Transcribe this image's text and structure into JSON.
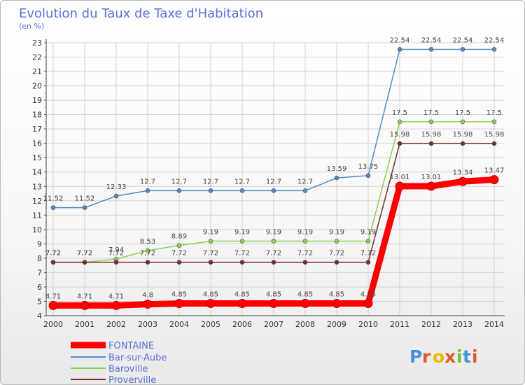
{
  "chart_data": {
    "type": "line",
    "title": "Evolution du Taux de Taxe d'Habitation",
    "unit_label": "(en %)",
    "x": [
      "2000",
      "2001",
      "2002",
      "2003",
      "2004",
      "2005",
      "2006",
      "2007",
      "2008",
      "2009",
      "2010",
      "2011",
      "2012",
      "2013",
      "2014"
    ],
    "ylim": [
      4,
      23
    ],
    "yticks": [
      4,
      5,
      6,
      7,
      8,
      9,
      10,
      11,
      12,
      13,
      14,
      15,
      16,
      17,
      18,
      19,
      20,
      21,
      22,
      23
    ],
    "grid": true,
    "legend_position": "bottom-left",
    "series": [
      {
        "name": "FONTAINE",
        "color": "#ff0000",
        "values": [
          4.71,
          4.71,
          4.71,
          4.8,
          4.85,
          4.85,
          4.85,
          4.85,
          4.85,
          4.85,
          4.85,
          13.01,
          13.01,
          13.34,
          13.47
        ],
        "labels": [
          "4.71",
          "4.71",
          "4.71",
          "4.8",
          "4.85",
          "4.85",
          "4.85",
          "4.85",
          "4.85",
          "4.85",
          "4.85",
          "13.01",
          "13.01",
          "13.34",
          "13.47"
        ]
      },
      {
        "name": "Bar-sur-Aube",
        "color": "#4d8cc9",
        "values": [
          11.52,
          11.52,
          12.33,
          12.7,
          12.7,
          12.7,
          12.7,
          12.7,
          12.7,
          13.59,
          13.75,
          22.54,
          22.54,
          22.54,
          22.54
        ],
        "labels": [
          "11.52",
          "11.52",
          "12.33",
          "12.7",
          "12.7",
          "12.7",
          "12.7",
          "12.7",
          "12.7",
          "13.59",
          "13.75",
          "22.54",
          "22.54",
          "22.54",
          "22.54"
        ]
      },
      {
        "name": "Baroville",
        "color": "#8fd14f",
        "values": [
          7.72,
          7.72,
          7.94,
          8.53,
          8.89,
          9.19,
          9.19,
          9.19,
          9.19,
          9.19,
          9.19,
          17.5,
          17.5,
          17.5,
          17.5
        ],
        "labels": [
          "7.72",
          "7.72",
          "7.94",
          "8.53",
          "8.89",
          "9.19",
          "9.19",
          "9.19",
          "9.19",
          "9.19",
          "9.19",
          "17.5",
          "17.5",
          "17.5",
          "17.5"
        ]
      },
      {
        "name": "Proverville",
        "color": "#7b2b2b",
        "values": [
          7.72,
          7.72,
          7.72,
          7.72,
          7.72,
          7.72,
          7.72,
          7.72,
          7.72,
          7.72,
          7.72,
          15.98,
          15.98,
          15.98,
          15.98
        ],
        "labels": [
          "7.72",
          "7.72",
          "7.72",
          "7.72",
          "7.72",
          "7.72",
          "7.72",
          "7.72",
          "7.72",
          "7.72",
          "7.72",
          "15.98",
          "15.98",
          "15.98",
          "15.98"
        ]
      }
    ]
  },
  "logo": {
    "text": "Proxiti",
    "letters": [
      "P",
      "r",
      "o",
      "x",
      "i",
      "t",
      "i"
    ]
  },
  "colors": {
    "title": "#5a6fd8",
    "grid": "#d2d2d2",
    "axis": "#444444"
  }
}
